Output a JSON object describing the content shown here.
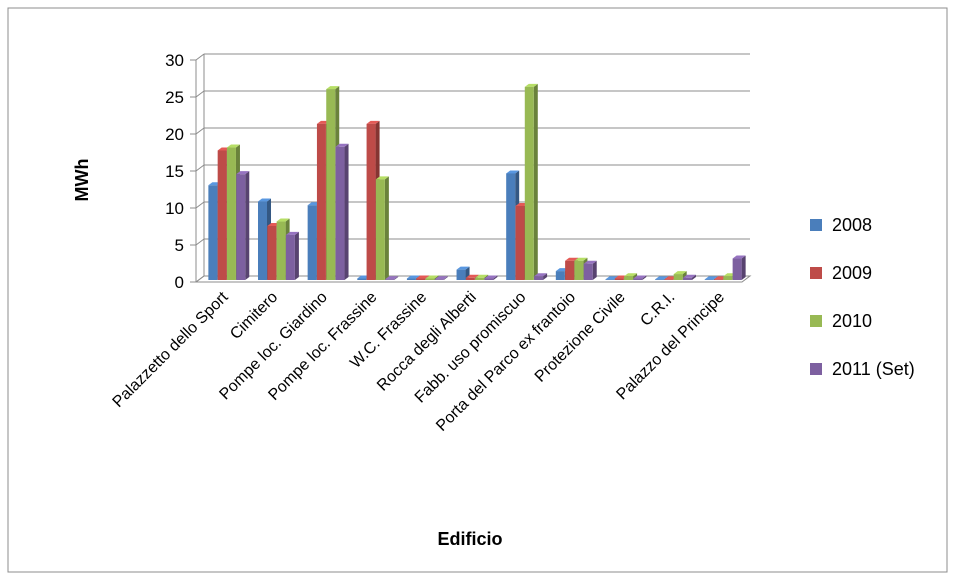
{
  "chart_data": {
    "type": "bar",
    "variant": "3d-clustered-column",
    "title": "",
    "xlabel": "Edificio",
    "ylabel": "MWh",
    "ylim": [
      0,
      30
    ],
    "yticks": [
      0,
      5,
      10,
      15,
      20,
      25,
      30
    ],
    "grid": true,
    "legend_position": "right",
    "categories": [
      "Palazzetto dello Sport",
      "Cimitero",
      "Pompe loc. Giardino",
      "Pompe loc. Frassine",
      "W.C. Frassine",
      "Rocca degli Alberti",
      "Fabb. uso promiscuo",
      "Porta del Parco ex frantoio",
      "Protezione Civile",
      "C.R.I.",
      "Palazzo del Principe"
    ],
    "series": [
      {
        "name": "2008",
        "color": "#4a7ebb",
        "values": [
          12.8,
          10.6,
          10.1,
          0.2,
          0.2,
          1.4,
          14.4,
          1.2,
          0,
          0,
          0
        ]
      },
      {
        "name": "2009",
        "color": "#be4b48",
        "values": [
          17.5,
          7.3,
          21.1,
          21.1,
          0.2,
          0.3,
          10.0,
          2.6,
          0.2,
          0,
          0
        ]
      },
      {
        "name": "2010",
        "color": "#98b954",
        "values": [
          17.9,
          7.9,
          25.8,
          13.6,
          0.2,
          0.3,
          26.1,
          2.6,
          0.5,
          0.8,
          0.5
        ]
      },
      {
        "name": "2011 (Set)",
        "color": "#7d60a0",
        "values": [
          14.3,
          6.1,
          18.0,
          0.1,
          0.1,
          0.2,
          0.5,
          2.2,
          0.2,
          0.3,
          2.9
        ]
      }
    ]
  }
}
